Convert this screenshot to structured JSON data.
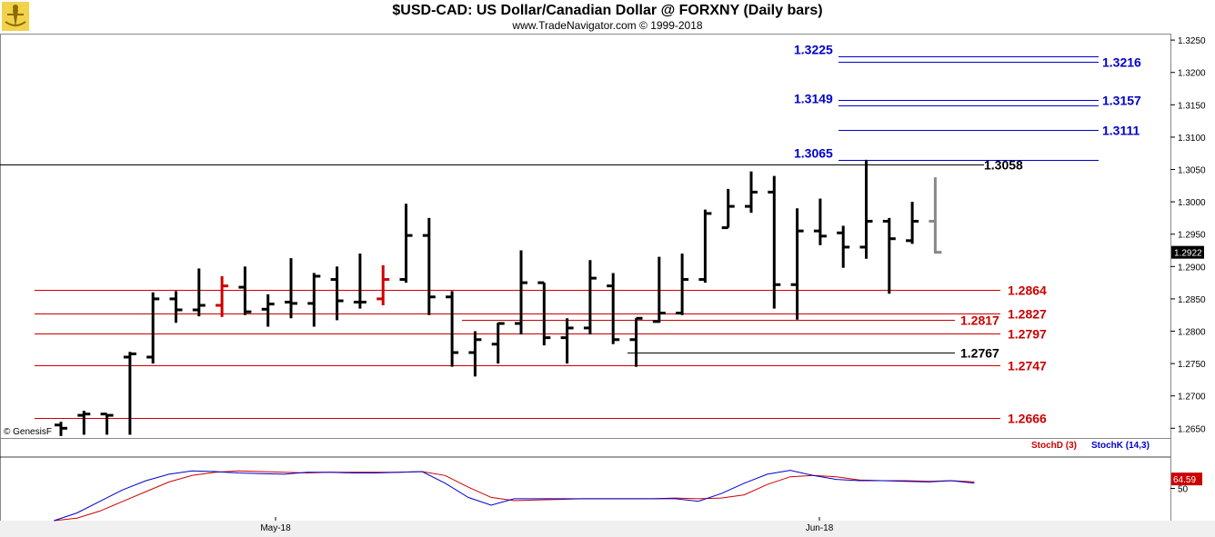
{
  "header": {
    "title": "$USD-CAD:  US Dollar/Canadian Dollar @ FORXNY  (Daily bars)",
    "subtitle": "www.TradeNavigator.com © 1999-2018"
  },
  "watermark": "© GenesisF",
  "colors": {
    "resistance": "#0000cc",
    "support": "#cc0000",
    "neutral": "#000000",
    "last_bar": "#888888",
    "stochD": "#cc0000",
    "stochK": "#0000cc"
  },
  "chart_data": [
    {
      "type": "ohlc",
      "title": "$USD-CAD:  US Dollar/Canadian Dollar @ FORXNY  (Daily bars)",
      "ylim": [
        1.2635,
        1.326
      ],
      "y_ticks": [
        "1.3250",
        "1.3200",
        "1.3150",
        "1.3100",
        "1.3050",
        "1.3000",
        "1.2950",
        "1.2900",
        "1.2850",
        "1.2800",
        "1.2750",
        "1.2700",
        "1.2650"
      ],
      "x_labels": [
        "May-18",
        "Jun-18"
      ],
      "last_price": "1.2922",
      "bars": [
        {
          "o": 1.2655,
          "h": 1.266,
          "l": 1.2638,
          "c": 1.265
        },
        {
          "o": 1.267,
          "h": 1.2677,
          "l": 1.264,
          "c": 1.2672
        },
        {
          "o": 1.2672,
          "h": 1.2672,
          "l": 1.264,
          "c": 1.267
        },
        {
          "o": 1.276,
          "h": 1.2768,
          "l": 1.264,
          "c": 1.2765
        },
        {
          "o": 1.276,
          "h": 1.286,
          "l": 1.275,
          "c": 1.285
        },
        {
          "o": 1.285,
          "h": 1.2862,
          "l": 1.2813,
          "c": 1.2833
        },
        {
          "o": 1.2833,
          "h": 1.2897,
          "l": 1.2823,
          "c": 1.284
        },
        {
          "o": 1.284,
          "h": 1.2885,
          "l": 1.2822,
          "c": 1.287,
          "red": true
        },
        {
          "o": 1.2868,
          "h": 1.29,
          "l": 1.2825,
          "c": 1.283
        },
        {
          "o": 1.2834,
          "h": 1.2857,
          "l": 1.2807,
          "c": 1.2842
        },
        {
          "o": 1.2845,
          "h": 1.2913,
          "l": 1.282,
          "c": 1.2843
        },
        {
          "o": 1.2843,
          "h": 1.289,
          "l": 1.2807,
          "c": 1.2885
        },
        {
          "o": 1.288,
          "h": 1.29,
          "l": 1.2817,
          "c": 1.2847
        },
        {
          "o": 1.2845,
          "h": 1.292,
          "l": 1.2835,
          "c": 1.2845
        },
        {
          "o": 1.285,
          "h": 1.2902,
          "l": 1.284,
          "c": 1.288,
          "red": true
        },
        {
          "o": 1.288,
          "h": 1.2997,
          "l": 1.2875,
          "c": 1.2948
        },
        {
          "o": 1.2948,
          "h": 1.2975,
          "l": 1.2825,
          "c": 1.2853
        },
        {
          "o": 1.2853,
          "h": 1.2862,
          "l": 1.2745,
          "c": 1.2767
        },
        {
          "o": 1.2767,
          "h": 1.28,
          "l": 1.273,
          "c": 1.2787
        },
        {
          "o": 1.278,
          "h": 1.2813,
          "l": 1.275,
          "c": 1.2812
        },
        {
          "o": 1.2812,
          "h": 1.2925,
          "l": 1.2795,
          "c": 1.2875
        },
        {
          "o": 1.2875,
          "h": 1.2875,
          "l": 1.2778,
          "c": 1.279
        },
        {
          "o": 1.279,
          "h": 1.282,
          "l": 1.275,
          "c": 1.2805
        },
        {
          "o": 1.2805,
          "h": 1.291,
          "l": 1.2795,
          "c": 1.2882
        },
        {
          "o": 1.287,
          "h": 1.289,
          "l": 1.278,
          "c": 1.2787
        },
        {
          "o": 1.2787,
          "h": 1.282,
          "l": 1.2745,
          "c": 1.282
        },
        {
          "o": 1.2815,
          "h": 1.2915,
          "l": 1.2813,
          "c": 1.2828
        },
        {
          "o": 1.2828,
          "h": 1.292,
          "l": 1.2825,
          "c": 1.288
        },
        {
          "o": 1.288,
          "h": 1.2988,
          "l": 1.2875,
          "c": 1.2982
        },
        {
          "o": 1.296,
          "h": 1.302,
          "l": 1.296,
          "c": 1.2993
        },
        {
          "o": 1.2993,
          "h": 1.3047,
          "l": 1.2983,
          "c": 1.3015
        },
        {
          "o": 1.3015,
          "h": 1.304,
          "l": 1.2835,
          "c": 1.2872
        },
        {
          "o": 1.2872,
          "h": 1.299,
          "l": 1.2818,
          "c": 1.2955
        },
        {
          "o": 1.2955,
          "h": 1.3005,
          "l": 1.2933,
          "c": 1.2947
        },
        {
          "o": 1.2952,
          "h": 1.2963,
          "l": 1.2898,
          "c": 1.293
        },
        {
          "o": 1.293,
          "h": 1.3065,
          "l": 1.2912,
          "c": 1.297
        },
        {
          "o": 1.297,
          "h": 1.2975,
          "l": 1.2858,
          "c": 1.2943
        },
        {
          "o": 1.294,
          "h": 1.3,
          "l": 1.2935,
          "c": 1.297
        },
        {
          "o": 1.297,
          "h": 1.3038,
          "l": 1.292,
          "c": 1.2922,
          "gray": true
        }
      ],
      "levels": [
        {
          "value": 1.3225,
          "label": "1.3225",
          "color": "blue",
          "side": "left"
        },
        {
          "value": 1.3216,
          "label": "1.3216",
          "color": "blue",
          "side": "right"
        },
        {
          "value": 1.3157,
          "label": "1.3157",
          "color": "blue",
          "side": "right"
        },
        {
          "value": 1.3149,
          "label": "1.3149",
          "color": "blue",
          "side": "left"
        },
        {
          "value": 1.3111,
          "label": "1.3111",
          "color": "blue",
          "side": "right"
        },
        {
          "value": 1.3065,
          "label": "1.3065",
          "color": "blue",
          "side": "left"
        },
        {
          "value": 1.3058,
          "label": "1.3058",
          "color": "black",
          "side": "right"
        },
        {
          "value": 1.2864,
          "label": "1.2864",
          "color": "red",
          "side": "right"
        },
        {
          "value": 1.2827,
          "label": "1.2827",
          "color": "red",
          "side": "right"
        },
        {
          "value": 1.2817,
          "label": "1.2817",
          "color": "red",
          "side": "right"
        },
        {
          "value": 1.2797,
          "label": "1.2797",
          "color": "red",
          "side": "right"
        },
        {
          "value": 1.2767,
          "label": "1.2767",
          "color": "black",
          "side": "right"
        },
        {
          "value": 1.2747,
          "label": "1.2747",
          "color": "red",
          "side": "right"
        },
        {
          "value": 1.2666,
          "label": "1.2666",
          "color": "red",
          "side": "right"
        }
      ]
    },
    {
      "type": "line",
      "title": "",
      "ylim": [
        0,
        100
      ],
      "y_ticks": [
        "50"
      ],
      "last_value": "64.59",
      "series": [
        {
          "name": "StochD (3)",
          "color": "#cc0000",
          "values": [
            0,
            4,
            15,
            30,
            45,
            60,
            70,
            75,
            77,
            76,
            75,
            74,
            75,
            75,
            75,
            75,
            76,
            70,
            52,
            36,
            31,
            32,
            33,
            34,
            34,
            34,
            34,
            35,
            34,
            35,
            40,
            56,
            68,
            70,
            68,
            63,
            62,
            62,
            61,
            62,
            60
          ]
        },
        {
          "name": "StochK (14,3)",
          "color": "#0000cc",
          "values": [
            0,
            12,
            30,
            48,
            62,
            72,
            77,
            76,
            74,
            73,
            72,
            75,
            75,
            74,
            74,
            75,
            76,
            58,
            36,
            24,
            34,
            34,
            34,
            34,
            34,
            34,
            34,
            34,
            30,
            42,
            58,
            72,
            78,
            70,
            64,
            62,
            62,
            61,
            60,
            62,
            58
          ]
        }
      ]
    }
  ]
}
